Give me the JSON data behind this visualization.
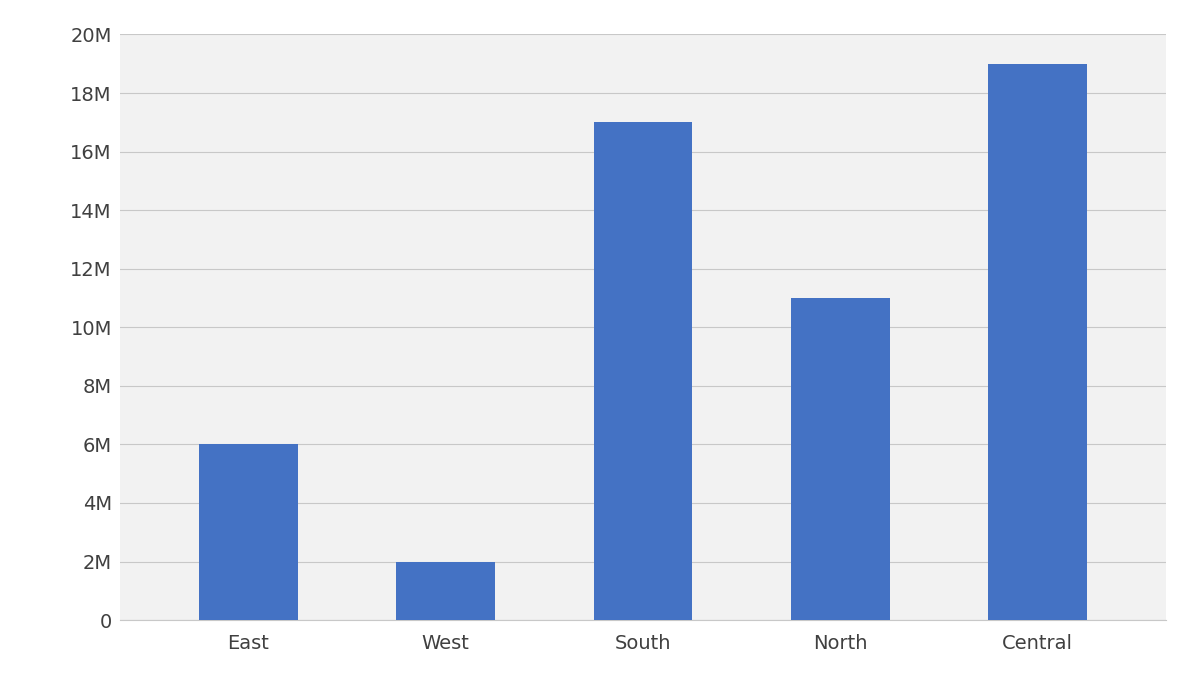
{
  "categories": [
    "East",
    "West",
    "South",
    "North",
    "Central"
  ],
  "values": [
    6000000,
    2000000,
    17000000,
    11000000,
    19000000
  ],
  "bar_color": "#4472C4",
  "background_color": "#f2f2f2",
  "plot_bg_color": "#f2f2f2",
  "ylim": [
    0,
    20000000
  ],
  "yticks": [
    0,
    2000000,
    4000000,
    6000000,
    8000000,
    10000000,
    12000000,
    14000000,
    16000000,
    18000000,
    20000000
  ],
  "ytick_labels": [
    "0",
    "2M",
    "4M",
    "6M",
    "8M",
    "10M",
    "12M",
    "14M",
    "16M",
    "18M",
    "20M"
  ],
  "grid_color": "#c8c8c8",
  "tick_color": "#404040",
  "label_fontsize": 14,
  "tick_fontsize": 14,
  "bar_width": 0.5,
  "outer_bg": "#ffffff"
}
